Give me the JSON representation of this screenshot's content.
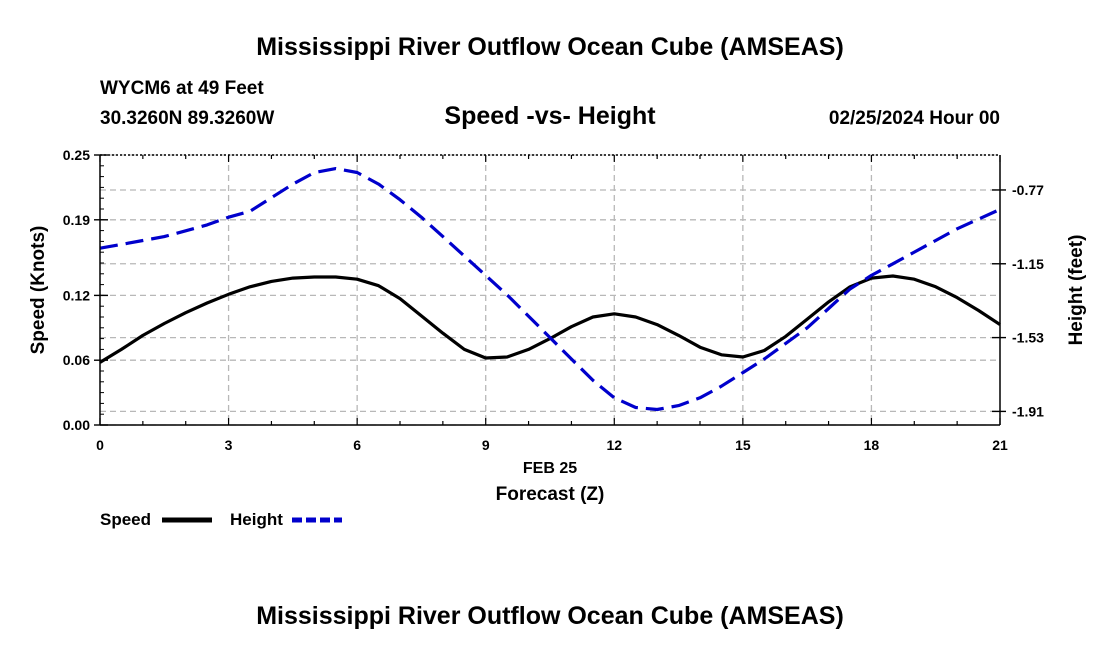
{
  "page": {
    "title": "Mississippi River Outflow Ocean Cube (AMSEAS)",
    "footer_title": "Mississippi River Outflow Ocean Cube (AMSEAS)",
    "station": "WYCM6 at 49 Feet",
    "coordinates": "30.3260N  89.3260W",
    "datetime": "02/25/2024 Hour 00"
  },
  "chart_data": {
    "type": "line",
    "title": "Speed -vs- Height",
    "xlabel": "Forecast (Z)",
    "xdate_label": "FEB 25",
    "ylabel": "Speed (Knots)",
    "y2label": "Height (feet)",
    "xlim": [
      0,
      21
    ],
    "ylim": [
      0,
      0.25
    ],
    "y2lim": [
      -1.98,
      -0.59
    ],
    "grid": true,
    "x_ticks": [
      0,
      3,
      6,
      9,
      12,
      15,
      18,
      21
    ],
    "x_tick_labels": [
      "0",
      "3",
      "6",
      "9",
      "12",
      "15",
      "18",
      "21"
    ],
    "y_ticks": [
      0,
      0.06,
      0.12,
      0.19,
      0.25
    ],
    "y_tick_labels": [
      "0.00",
      "0.06",
      "0.12",
      "0.19",
      "0.25"
    ],
    "y2_ticks": [
      -1.91,
      -1.53,
      -1.15,
      -0.77
    ],
    "y2_tick_labels": [
      "-1.91",
      "-1.53",
      "-1.15",
      "-0.77"
    ],
    "legend_position": "bottom-left",
    "series": [
      {
        "name": "Speed",
        "axis": "left",
        "color": "#000000",
        "dash": "solid",
        "x": [
          0,
          0.5,
          1,
          1.5,
          2,
          2.5,
          3,
          3.5,
          4,
          4.5,
          5,
          5.5,
          6,
          6.5,
          7,
          7.5,
          8,
          8.5,
          9,
          9.5,
          10,
          10.5,
          11,
          11.5,
          12,
          12.5,
          13,
          13.5,
          14,
          14.5,
          15,
          15.5,
          16,
          16.5,
          17,
          17.5,
          18,
          18.5,
          19,
          19.5,
          20,
          20.5,
          21
        ],
        "values": [
          0.058,
          0.07,
          0.083,
          0.094,
          0.104,
          0.113,
          0.121,
          0.128,
          0.133,
          0.136,
          0.137,
          0.137,
          0.135,
          0.129,
          0.117,
          0.101,
          0.085,
          0.07,
          0.062,
          0.063,
          0.07,
          0.08,
          0.091,
          0.1,
          0.103,
          0.1,
          0.093,
          0.083,
          0.072,
          0.065,
          0.063,
          0.069,
          0.082,
          0.098,
          0.114,
          0.128,
          0.136,
          0.138,
          0.135,
          0.128,
          0.118,
          0.106,
          0.093
        ]
      },
      {
        "name": "Height",
        "axis": "right",
        "color": "#0000cc",
        "dash": "dashed",
        "x": [
          0,
          0.5,
          1,
          1.5,
          2,
          2.5,
          3,
          3.5,
          4,
          4.5,
          5,
          5.5,
          6,
          6.5,
          7,
          7.5,
          8,
          8.5,
          9,
          9.5,
          10,
          10.5,
          11,
          11.5,
          12,
          12.5,
          13,
          13.5,
          14,
          14.5,
          15,
          15.5,
          16,
          16.5,
          17,
          17.5,
          18,
          18.5,
          19,
          19.5,
          20,
          20.5,
          21
        ],
        "values": [
          -1.07,
          -1.05,
          -1.03,
          -1.01,
          -0.98,
          -0.95,
          -0.91,
          -0.88,
          -0.81,
          -0.74,
          -0.68,
          -0.66,
          -0.68,
          -0.74,
          -0.82,
          -0.91,
          -1.01,
          -1.11,
          -1.21,
          -1.31,
          -1.42,
          -1.53,
          -1.64,
          -1.75,
          -1.84,
          -1.89,
          -1.9,
          -1.88,
          -1.84,
          -1.78,
          -1.71,
          -1.64,
          -1.56,
          -1.48,
          -1.38,
          -1.28,
          -1.21,
          -1.15,
          -1.09,
          -1.03,
          -0.97,
          -0.92,
          -0.87
        ]
      }
    ]
  }
}
